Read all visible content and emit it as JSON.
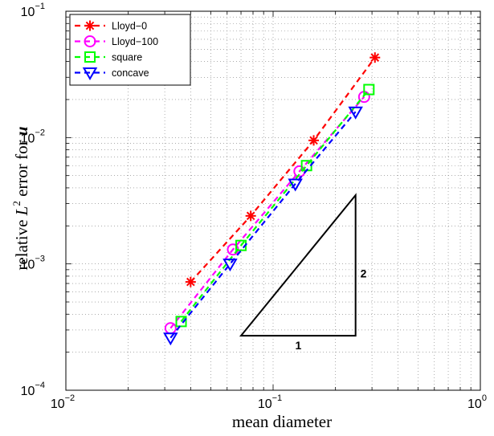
{
  "chart_data": {
    "type": "line",
    "xscale": "log",
    "yscale": "log",
    "xlim": [
      0.01,
      1
    ],
    "ylim": [
      0.0001,
      0.1
    ],
    "grid": true,
    "grid_style": "dotted",
    "legend_position": "top-left",
    "xlabel": "mean diameter",
    "ylabel": {
      "prefix": "relative ",
      "var": "L",
      "sup": "2",
      "middle": " error for ",
      "bold_var": "u"
    },
    "x_ticks": [
      {
        "value": 0.01,
        "base": "10",
        "exp": "−2"
      },
      {
        "value": 0.1,
        "base": "10",
        "exp": "−1"
      },
      {
        "value": 1,
        "base": "10",
        "exp": "0"
      }
    ],
    "y_ticks": [
      {
        "value": 0.0001,
        "base": "10",
        "exp": "−4"
      },
      {
        "value": 0.001,
        "base": "10",
        "exp": "−3"
      },
      {
        "value": 0.01,
        "base": "10",
        "exp": "−2"
      },
      {
        "value": 0.1,
        "base": "10",
        "exp": "−1"
      }
    ],
    "series": [
      {
        "name": "Lloyd−0",
        "color": "#ff0000",
        "marker": "asterisk",
        "x": [
          0.04,
          0.078,
          0.157,
          0.31
        ],
        "y": [
          0.00072,
          0.0024,
          0.0095,
          0.043
        ]
      },
      {
        "name": "Lloyd−100",
        "color": "#ff00ff",
        "marker": "circle",
        "x": [
          0.032,
          0.064,
          0.134,
          0.275
        ],
        "y": [
          0.00031,
          0.0013,
          0.0054,
          0.021
        ]
      },
      {
        "name": "square",
        "color": "#00ff00",
        "marker": "square",
        "x": [
          0.036,
          0.07,
          0.145,
          0.29
        ],
        "y": [
          0.00035,
          0.0014,
          0.006,
          0.024
        ]
      },
      {
        "name": "concave",
        "color": "#0000ff",
        "marker": "triangle-down",
        "x": [
          0.032,
          0.062,
          0.128,
          0.25
        ],
        "y": [
          0.00026,
          0.001,
          0.0043,
          0.016
        ]
      }
    ],
    "slope_triangle": {
      "x_start": 0.07,
      "x_end": 0.25,
      "y_base": 0.00027,
      "y_top": 0.0035,
      "run_label": "1",
      "rise_label": "2"
    }
  }
}
